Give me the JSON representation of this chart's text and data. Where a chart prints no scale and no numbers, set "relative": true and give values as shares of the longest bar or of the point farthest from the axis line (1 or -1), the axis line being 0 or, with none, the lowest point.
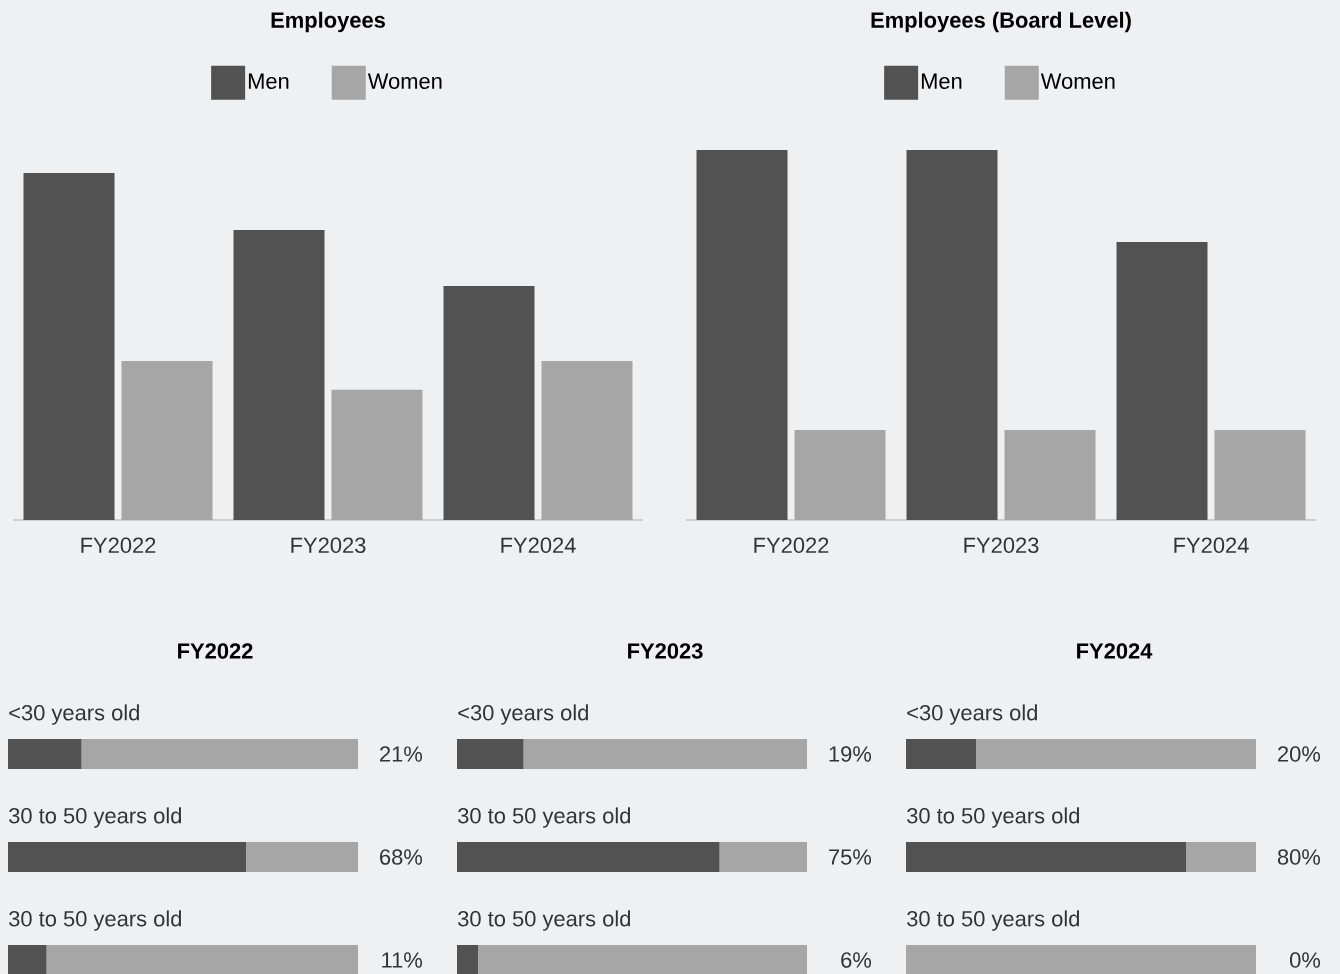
{
  "chart_data": [
    {
      "type": "bar",
      "title": "Employees",
      "relative": true,
      "legend": "top",
      "categories": [
        "FY2022",
        "FY2023",
        "FY2024"
      ],
      "series": [
        {
          "name": "Men",
          "color": "#525252",
          "values": [
            1,
            0.836,
            0.674
          ]
        },
        {
          "name": "Women",
          "color": "#a6a6a6",
          "values": [
            0.458,
            0.375,
            0.458
          ]
        }
      ]
    },
    {
      "type": "bar",
      "title": "Employees (Board Level)",
      "relative": true,
      "legend": "top",
      "categories": [
        "FY2022",
        "FY2023",
        "FY2024"
      ],
      "series": [
        {
          "name": "Men",
          "color": "#525252",
          "values": [
            1,
            1,
            0.751
          ]
        },
        {
          "name": "Women",
          "color": "#a6a6a6",
          "values": [
            0.243,
            0.243,
            0.243
          ]
        }
      ]
    },
    {
      "type": "bar",
      "orientation": "horizontal",
      "stacked": true,
      "title": "FY2022",
      "categories": [
        "<30 years old",
        "30 to 50 years old",
        "30 to 50 years old"
      ],
      "xlim": [
        0,
        100
      ],
      "series": [
        {
          "color": "#525252",
          "values": [
            21,
            68,
            11
          ],
          "value_labels": [
            "21%",
            "68%",
            "11%"
          ]
        },
        {
          "color": "#a6a6a6",
          "values": [
            79,
            32,
            89
          ]
        }
      ]
    },
    {
      "type": "bar",
      "orientation": "horizontal",
      "stacked": true,
      "title": "FY2023",
      "categories": [
        "<30 years old",
        "30 to 50 years old",
        "30 to 50 years old"
      ],
      "xlim": [
        0,
        100
      ],
      "series": [
        {
          "color": "#525252",
          "values": [
            19,
            75,
            6
          ],
          "value_labels": [
            "19%",
            "75%",
            "6%"
          ]
        },
        {
          "color": "#a6a6a6",
          "values": [
            81,
            25,
            94
          ]
        }
      ]
    },
    {
      "type": "bar",
      "orientation": "horizontal",
      "stacked": true,
      "title": "FY2024",
      "categories": [
        "<30 years old",
        "30 to 50 years old",
        "30 to 50 years old"
      ],
      "xlim": [
        0,
        100
      ],
      "series": [
        {
          "color": "#525252",
          "values": [
            20,
            80,
            0
          ],
          "value_labels": [
            "20%",
            "80%",
            "0%"
          ]
        },
        {
          "color": "#a6a6a6",
          "values": [
            80,
            20,
            100
          ]
        }
      ]
    }
  ]
}
